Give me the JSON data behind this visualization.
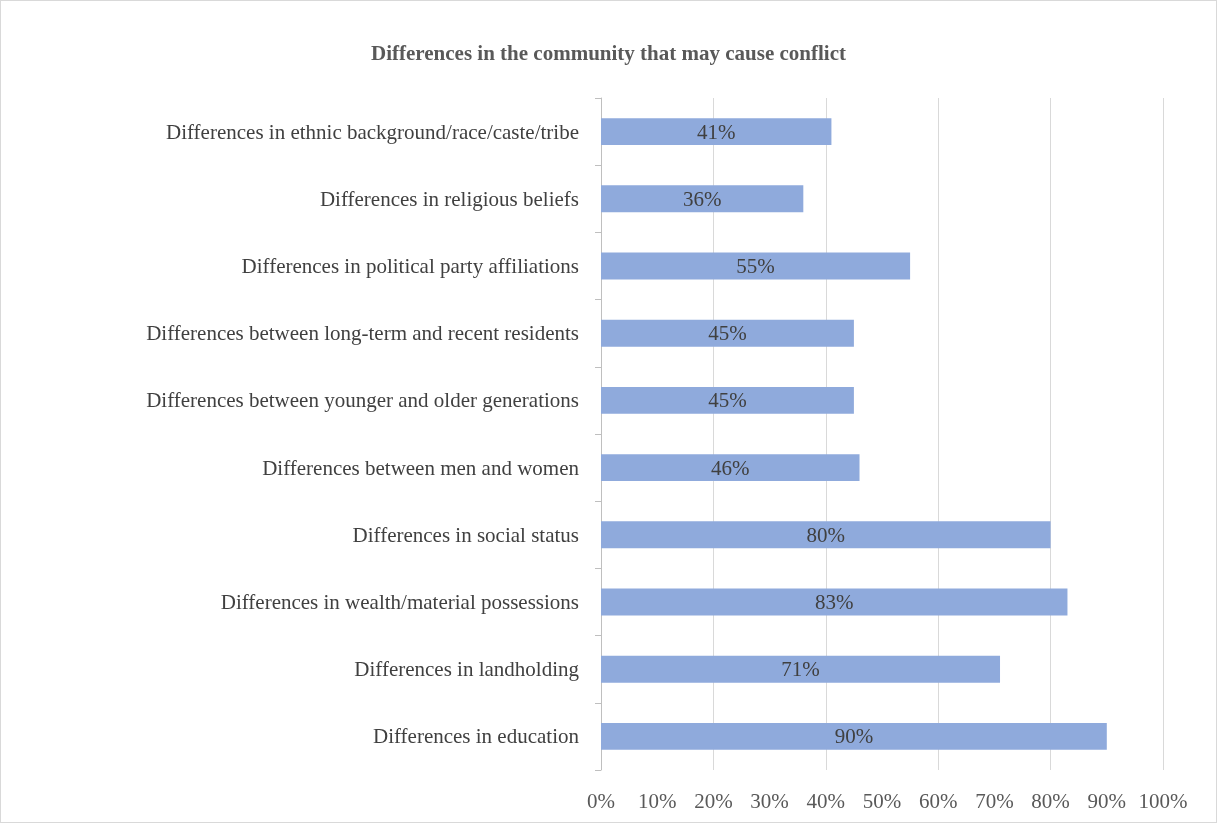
{
  "chart_data": {
    "type": "bar",
    "orientation": "horizontal",
    "title": "Differences in the community that may cause conflict",
    "categories": [
      "Differences in ethnic background/race/caste/tribe",
      "Differences in religious beliefs",
      "Differences in political party affiliations",
      "Differences between long-term and recent residents",
      "Differences between younger and older generations",
      "Differences between men and women",
      "Differences in social status",
      "Differences in wealth/material possessions",
      "Differences in landholding",
      "Differences in education"
    ],
    "values": [
      41,
      36,
      55,
      45,
      45,
      46,
      80,
      83,
      71,
      90
    ],
    "value_labels": [
      "41%",
      "36%",
      "55%",
      "45%",
      "45%",
      "46%",
      "80%",
      "83%",
      "71%",
      "90%"
    ],
    "color": "#8faadc",
    "xlim": [
      0,
      100
    ],
    "xticks": [
      {
        "value": 0,
        "label": "0%"
      },
      {
        "value": 10,
        "label": "10%"
      },
      {
        "value": 20,
        "label": "20%"
      },
      {
        "value": 30,
        "label": "30%"
      },
      {
        "value": 40,
        "label": "40%"
      },
      {
        "value": 50,
        "label": "50%"
      },
      {
        "value": 60,
        "label": "60%"
      },
      {
        "value": 70,
        "label": "70%"
      },
      {
        "value": 80,
        "label": "80%"
      },
      {
        "value": 90,
        "label": "90%"
      },
      {
        "value": 100,
        "label": "100%"
      }
    ],
    "grid": "x"
  }
}
